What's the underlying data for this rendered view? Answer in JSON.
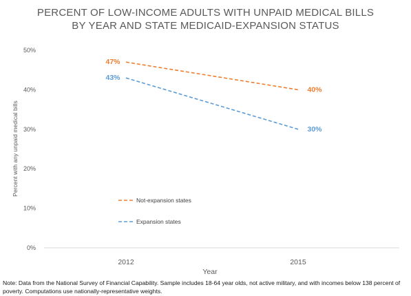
{
  "chart_data": {
    "type": "line",
    "title_lines": [
      "PERCENT OF LOW-INCOME ADULTS WITH UNPAID MEDICAL BILLS",
      "BY YEAR AND STATE MEDICAID-EXPANSION STATUS"
    ],
    "xlabel": "Year",
    "ylabel": "Percent with any unpaid medical bills",
    "categories": [
      "2012",
      "2015"
    ],
    "yticks": [
      "0%",
      "10%",
      "20%",
      "30%",
      "40%",
      "50%"
    ],
    "ylim": [
      0,
      50
    ],
    "grid": false,
    "legend_position": "lower-left",
    "series": [
      {
        "name": "Not-expansion states",
        "values": [
          47,
          40
        ],
        "labels": [
          "47%",
          "40%"
        ],
        "color": "#ED7D31",
        "style": "dashed"
      },
      {
        "name": "Expansion states",
        "values": [
          43,
          30
        ],
        "labels": [
          "43%",
          "30%"
        ],
        "color": "#5B9BD5",
        "style": "dashed"
      }
    ],
    "footnote": "Note: Data from the National Survey of Financial Capability. Sample includes 18-64 year olds, not active military, and with incomes below 138 percent of poverty. Computations use nationally-representative weights."
  }
}
